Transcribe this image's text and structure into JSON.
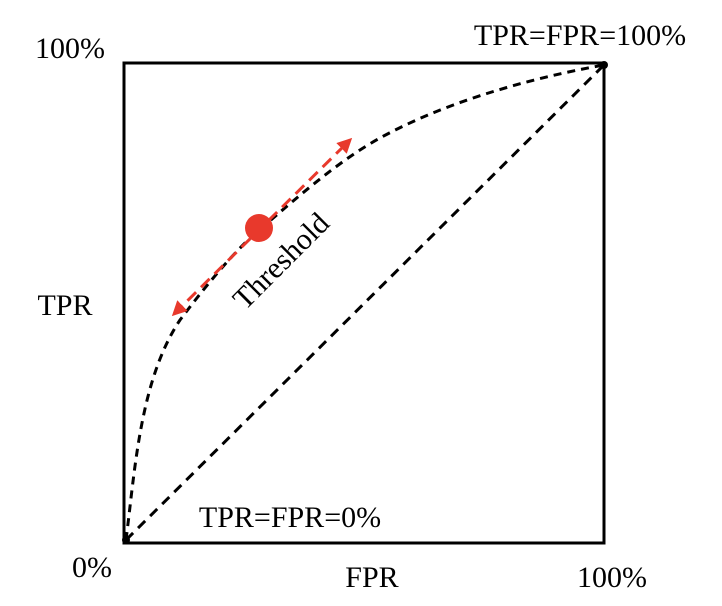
{
  "y_axis": {
    "label": "TPR",
    "top": "100%",
    "bottom": "0%"
  },
  "x_axis": {
    "label": "FPR",
    "right": "100%"
  },
  "annotations": {
    "top_right": "TPR=FPR=100%",
    "bottom_left": "TPR=FPR=0%",
    "threshold": "Threshold"
  }
}
